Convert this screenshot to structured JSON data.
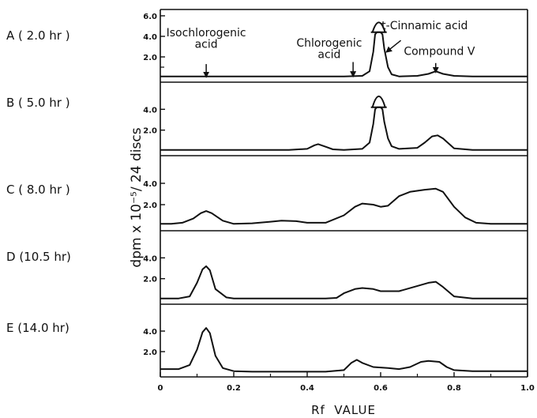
{
  "chart_data": {
    "type": "line",
    "xlabel": "Rf  VALUE",
    "ylabel": "dpm x 10⁻⁵/ 24 discs",
    "xlim": [
      0,
      1.0
    ],
    "x_ticks": [
      "0",
      "0.2",
      "0.4",
      "0.6",
      "0.8",
      "1.0"
    ],
    "x_tick_values": [
      0,
      0.2,
      0.4,
      0.6,
      0.8,
      1.0
    ],
    "panels": [
      {
        "label": "A ( 2.0 hr )",
        "ylim": [
          0,
          6.0
        ],
        "y_ticks": [
          "2.0",
          "4.0",
          "6.0"
        ],
        "y_tick_values": [
          2.0,
          4.0,
          6.0
        ],
        "y_minor": [
          1.0
        ],
        "annotations": [
          {
            "text": "Isochlorogenic",
            "x": 0.125,
            "y": 4.0
          },
          {
            "text": "acid",
            "x": 0.125,
            "y": 2.9
          },
          {
            "text": "Chlorogenic",
            "x": 0.46,
            "y": 3.0
          },
          {
            "text": "acid",
            "x": 0.46,
            "y": 1.9
          },
          {
            "text": "t-Cinnamic acid",
            "x": 0.72,
            "y": 4.7
          },
          {
            "text": "Compound V",
            "x": 0.76,
            "y": 2.2
          }
        ],
        "arrows": [
          {
            "x": 0.125,
            "y_from": 1.3,
            "y_to": 0.25
          },
          {
            "x": 0.525,
            "y_from": 1.5,
            "y_to": 0.3
          },
          {
            "x": 0.75,
            "y_from": 1.4,
            "y_to": 0.7
          },
          {
            "x": 0.62,
            "y_from": 3.6,
            "y_to": 2.6,
            "x_from": 0.655
          }
        ],
        "broken_peak": {
          "x": 0.595,
          "y_from": 4.4,
          "y_to": 5.7
        },
        "x": [
          0,
          0.05,
          0.1,
          0.15,
          0.2,
          0.25,
          0.3,
          0.35,
          0.4,
          0.45,
          0.5,
          0.55,
          0.57,
          0.58,
          0.585,
          0.59,
          0.6,
          0.605,
          0.61,
          0.62,
          0.63,
          0.65,
          0.7,
          0.73,
          0.75,
          0.77,
          0.8,
          0.85,
          0.9,
          0.95,
          1.0
        ],
        "y": [
          0.1,
          0.1,
          0.1,
          0.1,
          0.1,
          0.1,
          0.1,
          0.1,
          0.1,
          0.1,
          0.1,
          0.15,
          0.6,
          2.5,
          4.2,
          4.4,
          4.4,
          4.2,
          2.8,
          1.0,
          0.3,
          0.1,
          0.15,
          0.35,
          0.6,
          0.35,
          0.15,
          0.1,
          0.1,
          0.1,
          0.1
        ]
      },
      {
        "label": "B ( 5.0 hr )",
        "ylim": [
          0,
          6.0
        ],
        "y_ticks": [
          "2.0",
          "4.0"
        ],
        "y_tick_values": [
          2.0,
          4.0
        ],
        "broken_peak": {
          "x": 0.595,
          "y_from": 4.2,
          "y_to": 5.7
        },
        "x": [
          0,
          0.05,
          0.1,
          0.15,
          0.2,
          0.25,
          0.3,
          0.35,
          0.4,
          0.42,
          0.43,
          0.45,
          0.47,
          0.5,
          0.55,
          0.57,
          0.58,
          0.585,
          0.59,
          0.6,
          0.605,
          0.61,
          0.62,
          0.63,
          0.65,
          0.7,
          0.72,
          0.74,
          0.755,
          0.77,
          0.8,
          0.85,
          0.9,
          0.95,
          1.0
        ],
        "y": [
          0.1,
          0.1,
          0.1,
          0.1,
          0.1,
          0.1,
          0.1,
          0.1,
          0.2,
          0.55,
          0.65,
          0.4,
          0.15,
          0.1,
          0.2,
          0.8,
          2.6,
          4.0,
          4.2,
          4.2,
          4.0,
          2.8,
          1.2,
          0.45,
          0.2,
          0.3,
          0.8,
          1.4,
          1.5,
          1.2,
          0.25,
          0.1,
          0.1,
          0.1,
          0.1
        ]
      },
      {
        "label": "C ( 8.0 hr )",
        "ylim": [
          0,
          6.0
        ],
        "y_ticks": [
          "2.0",
          "4.0"
        ],
        "y_tick_values": [
          2.0,
          4.0
        ],
        "x": [
          0,
          0.03,
          0.06,
          0.09,
          0.11,
          0.125,
          0.14,
          0.17,
          0.2,
          0.25,
          0.3,
          0.33,
          0.37,
          0.4,
          0.45,
          0.5,
          0.53,
          0.55,
          0.58,
          0.6,
          0.62,
          0.65,
          0.68,
          0.72,
          0.75,
          0.77,
          0.8,
          0.83,
          0.86,
          0.9,
          0.95,
          1.0
        ],
        "y": [
          0.2,
          0.2,
          0.3,
          0.7,
          1.2,
          1.4,
          1.2,
          0.5,
          0.2,
          0.25,
          0.4,
          0.5,
          0.45,
          0.3,
          0.3,
          1.0,
          1.8,
          2.1,
          2.0,
          1.8,
          1.9,
          2.8,
          3.2,
          3.4,
          3.5,
          3.2,
          1.8,
          0.8,
          0.3,
          0.2,
          0.2,
          0.2
        ]
      },
      {
        "label": "D (10.5 hr)",
        "ylim": [
          0,
          6.0
        ],
        "y_ticks": [
          "2.0",
          "4.0"
        ],
        "y_tick_values": [
          2.0,
          4.0
        ],
        "x": [
          0,
          0.05,
          0.08,
          0.1,
          0.115,
          0.125,
          0.135,
          0.15,
          0.18,
          0.2,
          0.25,
          0.3,
          0.35,
          0.4,
          0.45,
          0.48,
          0.5,
          0.53,
          0.55,
          0.58,
          0.6,
          0.65,
          0.7,
          0.73,
          0.75,
          0.77,
          0.8,
          0.85,
          0.9,
          0.95,
          1.0
        ],
        "y": [
          0.1,
          0.1,
          0.3,
          1.6,
          2.9,
          3.2,
          2.8,
          1.0,
          0.2,
          0.1,
          0.1,
          0.1,
          0.1,
          0.1,
          0.1,
          0.15,
          0.6,
          1.0,
          1.1,
          1.0,
          0.8,
          0.8,
          1.3,
          1.6,
          1.7,
          1.2,
          0.3,
          0.1,
          0.1,
          0.1,
          0.1
        ]
      },
      {
        "label": "E (14.0 hr)",
        "ylim": [
          0,
          6.0
        ],
        "y_ticks": [
          "2.0",
          "4.0"
        ],
        "y_tick_values": [
          2.0,
          4.0
        ],
        "x": [
          0,
          0.05,
          0.08,
          0.1,
          0.115,
          0.125,
          0.135,
          0.15,
          0.17,
          0.2,
          0.25,
          0.3,
          0.35,
          0.4,
          0.45,
          0.5,
          0.52,
          0.535,
          0.55,
          0.58,
          0.62,
          0.65,
          0.68,
          0.71,
          0.73,
          0.76,
          0.78,
          0.8,
          0.85,
          0.9,
          0.95,
          1.0
        ],
        "y": [
          0.3,
          0.3,
          0.7,
          2.2,
          3.9,
          4.3,
          3.8,
          1.6,
          0.4,
          0.1,
          0.05,
          0.05,
          0.05,
          0.05,
          0.05,
          0.2,
          0.9,
          1.2,
          0.9,
          0.5,
          0.4,
          0.3,
          0.5,
          1.0,
          1.1,
          1.0,
          0.5,
          0.2,
          0.1,
          0.1,
          0.1,
          0.1
        ]
      }
    ]
  }
}
